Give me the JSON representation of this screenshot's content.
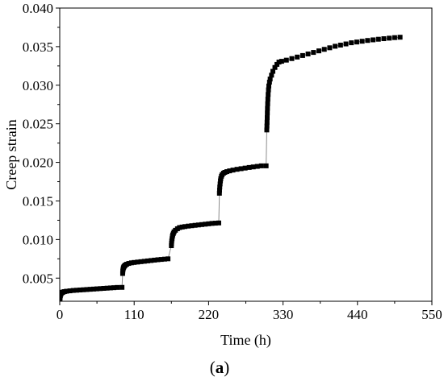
{
  "chart_data": {
    "type": "scatter",
    "xlabel": "Time (h)",
    "ylabel": "Creep strain",
    "panel_label": {
      "open": "(",
      "letter": "a",
      "close": ")"
    },
    "xlim": [
      0,
      550
    ],
    "ylim": [
      0.002,
      0.04
    ],
    "x_ticks": [
      0,
      110,
      220,
      330,
      440,
      550
    ],
    "x_tick_labels": [
      "0",
      "110",
      "220",
      "330",
      "440",
      "550"
    ],
    "y_ticks": [
      0.005,
      0.01,
      0.015,
      0.02,
      0.025,
      0.03,
      0.035,
      0.04
    ],
    "y_tick_labels": [
      "0.005",
      "0.010",
      "0.015",
      "0.020",
      "0.025",
      "0.030",
      "0.035",
      "0.040"
    ],
    "grid": false,
    "legend": "none",
    "marker": "square",
    "marker_color": "#000000",
    "line_color": "#8c8c8c",
    "series": [
      {
        "values": [
          [
            0,
            0.0015
          ],
          [
            0.2,
            0.002
          ],
          [
            0.5,
            0.0024
          ],
          [
            1,
            0.0027
          ],
          [
            1.5,
            0.0029
          ],
          [
            2,
            0.003
          ],
          [
            3,
            0.0031
          ],
          [
            4,
            0.00315
          ],
          [
            5,
            0.0032
          ],
          [
            7,
            0.00325
          ],
          [
            10,
            0.0033
          ],
          [
            15,
            0.00335
          ],
          [
            20,
            0.0034
          ],
          [
            25,
            0.00343
          ],
          [
            30,
            0.00346
          ],
          [
            35,
            0.00349
          ],
          [
            40,
            0.00352
          ],
          [
            45,
            0.00355
          ],
          [
            50,
            0.00358
          ],
          [
            55,
            0.00361
          ],
          [
            60,
            0.00364
          ],
          [
            65,
            0.00367
          ],
          [
            70,
            0.0037
          ],
          [
            75,
            0.00373
          ],
          [
            80,
            0.00376
          ],
          [
            85,
            0.00379
          ],
          [
            92,
            0.0038
          ],
          [
            93,
            0.0056
          ],
          [
            93.2,
            0.0059
          ],
          [
            93.5,
            0.0061
          ],
          [
            94,
            0.0063
          ],
          [
            94.5,
            0.0064
          ],
          [
            95,
            0.0065
          ],
          [
            96,
            0.0066
          ],
          [
            97,
            0.0067
          ],
          [
            99,
            0.0068
          ],
          [
            102,
            0.0069
          ],
          [
            106,
            0.00698
          ],
          [
            110,
            0.00703
          ],
          [
            115,
            0.00708
          ],
          [
            120,
            0.00713
          ],
          [
            125,
            0.00718
          ],
          [
            130,
            0.00723
          ],
          [
            135,
            0.00728
          ],
          [
            140,
            0.00733
          ],
          [
            145,
            0.00738
          ],
          [
            150,
            0.00742
          ],
          [
            155,
            0.00746
          ],
          [
            160,
            0.0075
          ],
          [
            165,
            0.0092
          ],
          [
            165.2,
            0.0095
          ],
          [
            165.5,
            0.0098
          ],
          [
            166,
            0.0101
          ],
          [
            166.5,
            0.0104
          ],
          [
            167,
            0.0106
          ],
          [
            168,
            0.0108
          ],
          [
            169,
            0.011
          ],
          [
            171,
            0.0112
          ],
          [
            174,
            0.0114
          ],
          [
            177,
            0.01155
          ],
          [
            181,
            0.01162
          ],
          [
            185,
            0.01168
          ],
          [
            190,
            0.01174
          ],
          [
            195,
            0.01179
          ],
          [
            200,
            0.01184
          ],
          [
            205,
            0.01189
          ],
          [
            210,
            0.01194
          ],
          [
            215,
            0.01199
          ],
          [
            220,
            0.01204
          ],
          [
            225,
            0.01209
          ],
          [
            230,
            0.01212
          ],
          [
            235,
            0.01215
          ],
          [
            236,
            0.016
          ],
          [
            236.2,
            0.0164
          ],
          [
            236.5,
            0.0168
          ],
          [
            237,
            0.0172
          ],
          [
            237.5,
            0.0176
          ],
          [
            238,
            0.0179
          ],
          [
            239,
            0.0182
          ],
          [
            240,
            0.0184
          ],
          [
            242,
            0.0186
          ],
          [
            244,
            0.0187
          ],
          [
            247,
            0.0188
          ],
          [
            251,
            0.0189
          ],
          [
            256,
            0.019
          ],
          [
            262,
            0.0191
          ],
          [
            268,
            0.01918
          ],
          [
            274,
            0.01926
          ],
          [
            280,
            0.01934
          ],
          [
            286,
            0.01941
          ],
          [
            292,
            0.01948
          ],
          [
            298,
            0.01955
          ],
          [
            305,
            0.01955
          ],
          [
            306,
            0.0242
          ],
          [
            306.2,
            0.0247
          ],
          [
            306.4,
            0.0252
          ],
          [
            306.6,
            0.0258
          ],
          [
            306.8,
            0.0264
          ],
          [
            307,
            0.027
          ],
          [
            307.3,
            0.0276
          ],
          [
            307.6,
            0.0282
          ],
          [
            308,
            0.0288
          ],
          [
            308.5,
            0.0294
          ],
          [
            309,
            0.0299
          ],
          [
            310,
            0.0304
          ],
          [
            311,
            0.0308
          ],
          [
            313,
            0.0313
          ],
          [
            315,
            0.0318
          ],
          [
            318,
            0.0323
          ],
          [
            321,
            0.0327
          ],
          [
            324,
            0.033
          ],
          [
            328,
            0.0331
          ],
          [
            335,
            0.03325
          ],
          [
            343,
            0.03345
          ],
          [
            351,
            0.03365
          ],
          [
            359,
            0.03385
          ],
          [
            367,
            0.03405
          ],
          [
            375,
            0.03425
          ],
          [
            383,
            0.03445
          ],
          [
            391,
            0.03465
          ],
          [
            399,
            0.03485
          ],
          [
            407,
            0.03505
          ],
          [
            415,
            0.0352
          ],
          [
            423,
            0.03535
          ],
          [
            431,
            0.0355
          ],
          [
            439,
            0.0356
          ],
          [
            447,
            0.0357
          ],
          [
            455,
            0.0358
          ],
          [
            463,
            0.03588
          ],
          [
            471,
            0.03596
          ],
          [
            479,
            0.03603
          ],
          [
            487,
            0.0361
          ],
          [
            495,
            0.03617
          ],
          [
            503,
            0.03622
          ]
        ]
      }
    ]
  }
}
